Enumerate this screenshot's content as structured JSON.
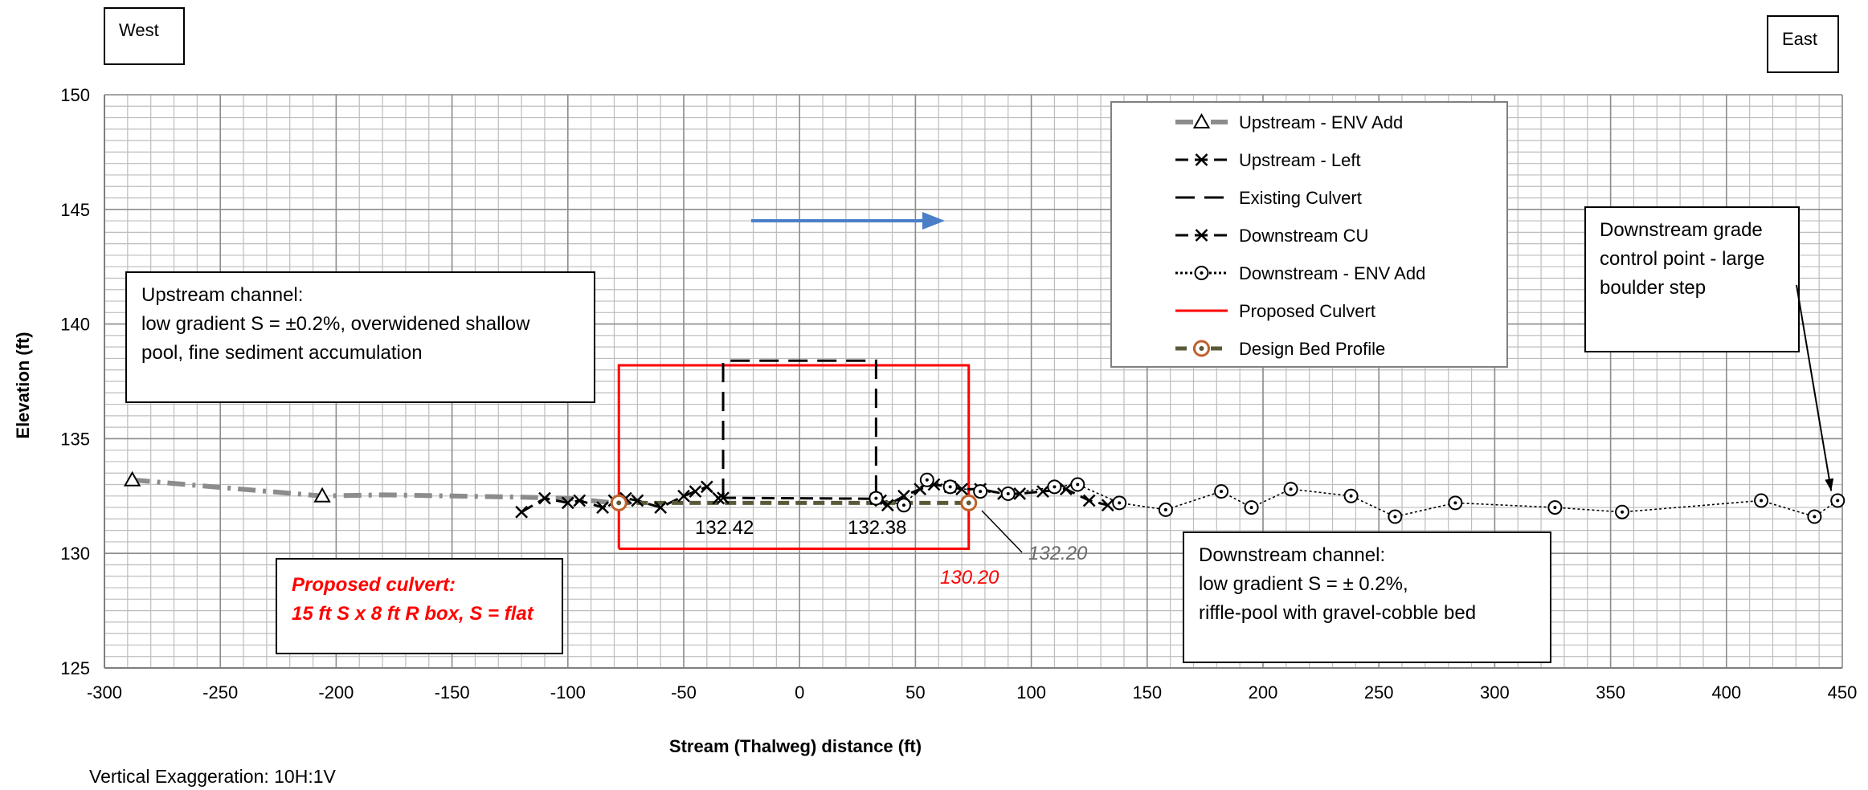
{
  "chart_data": {
    "type": "line",
    "title": "",
    "xlabel": "Stream (Thalweg) distance (ft)",
    "ylabel": "Elevation (ft)",
    "xlim": [
      -300,
      450
    ],
    "ylim": [
      125,
      150
    ],
    "xticks": [
      -300,
      -250,
      -200,
      -150,
      -100,
      -50,
      0,
      50,
      100,
      150,
      200,
      250,
      300,
      350,
      400,
      450
    ],
    "yticks": [
      125,
      130,
      135,
      140,
      145,
      150
    ],
    "grid": true,
    "legend_position": "top-right",
    "series": [
      {
        "name": "Upstream - ENV Add",
        "color": "#808080",
        "x": [
          -288,
          -206,
          -180,
          -150,
          -120,
          -100,
          -80
        ],
        "y": [
          133.2,
          132.5,
          132.55,
          132.5,
          132.45,
          132.4,
          132.2
        ]
      },
      {
        "name": "Upstream - Left",
        "color": "#000000",
        "x": [
          -120,
          -110,
          -100,
          -95,
          -85,
          -80,
          -75,
          -70,
          -60,
          -50,
          -45,
          -40,
          -35
        ],
        "y": [
          131.8,
          132.4,
          132.2,
          132.3,
          132.0,
          132.3,
          132.4,
          132.3,
          132.0,
          132.5,
          132.7,
          132.9,
          132.4
        ]
      },
      {
        "name": "Existing Culvert",
        "color": "#000000",
        "x": [
          -33,
          -33,
          33,
          33
        ],
        "y": [
          132.42,
          138.4,
          138.4,
          132.38
        ]
      },
      {
        "name": "Downstream CU",
        "color": "#000000",
        "x": [
          -33,
          33,
          35,
          38,
          45,
          52,
          58,
          65,
          70,
          78,
          88,
          95,
          105,
          115,
          125,
          133
        ],
        "y": [
          132.42,
          132.38,
          132.3,
          132.1,
          132.5,
          132.8,
          133.0,
          132.9,
          132.8,
          132.8,
          132.6,
          132.6,
          132.7,
          132.8,
          132.3,
          132.1
        ]
      },
      {
        "name": "Downstream - ENV Add",
        "color": "#000000",
        "x": [
          33,
          45,
          55,
          65,
          78,
          90,
          110,
          120,
          138,
          158,
          182,
          195,
          212,
          238,
          257,
          283,
          326,
          355,
          415,
          438,
          448
        ],
        "y": [
          132.4,
          132.1,
          133.2,
          132.9,
          132.7,
          132.6,
          132.9,
          133.0,
          132.2,
          131.9,
          132.7,
          132.0,
          132.8,
          132.5,
          131.6,
          132.2,
          132.0,
          131.8,
          132.3,
          131.6,
          132.3
        ]
      },
      {
        "name": "Proposed Culvert",
        "color": "#ff0000",
        "x": [
          -78,
          73,
          73,
          -78,
          -78
        ],
        "y": [
          130.2,
          130.2,
          138.2,
          138.2,
          130.2
        ]
      },
      {
        "name": "Design Bed Profile",
        "color": "#5a5a3a",
        "x": [
          -78,
          73
        ],
        "y": [
          132.2,
          132.2
        ]
      }
    ],
    "annotations": {
      "west": "West",
      "east": "East",
      "upstream_title": "Upstream channel:",
      "upstream_l1": "low gradient S = ±0.2%, overwidened shallow",
      "upstream_l2": "pool, fine sediment accumulation",
      "proposed_l1": "Proposed culvert:",
      "proposed_l2": "15 ft S x 8 ft R box, S = flat",
      "downstream_title": "Downstream channel:",
      "downstream_l1": "low gradient S = ± 0.2%,",
      "downstream_l2": "riffle-pool with gravel-cobble bed",
      "grade_l1": "Downstream grade",
      "grade_l2": "control point - large",
      "grade_l3": "boulder step",
      "val_13242": "132.42",
      "val_13238": "132.38",
      "val_13220": "132.20",
      "val_13020": "130.20",
      "vertical_exaggeration": "Vertical Exaggeration: 10H:1V",
      "flow_arrow_color": "#4a7fc8"
    }
  }
}
